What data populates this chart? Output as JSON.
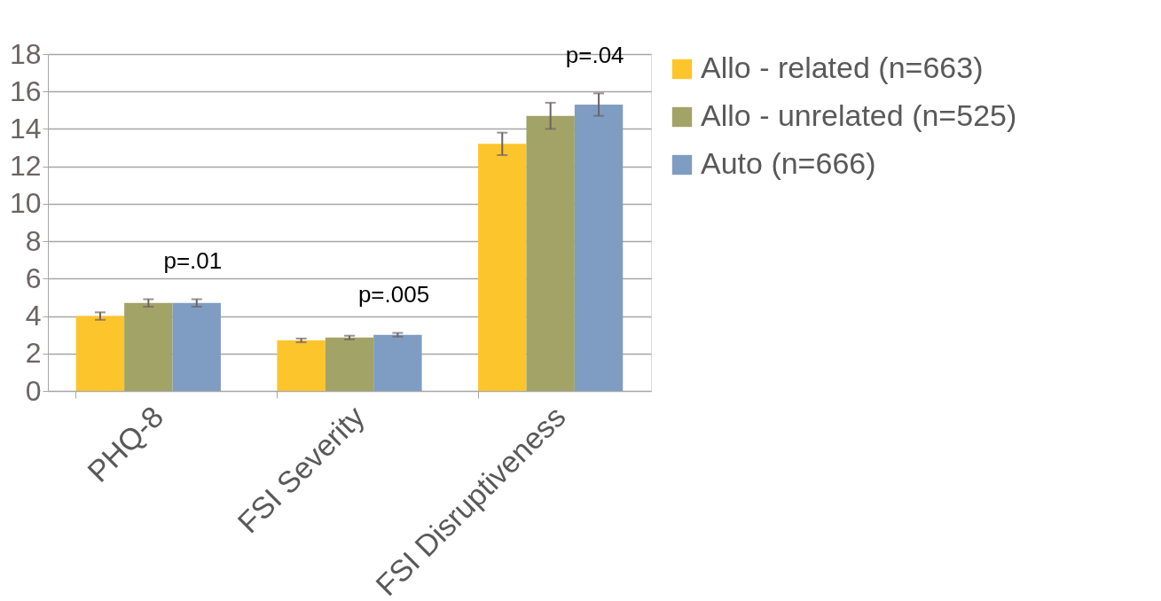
{
  "chart_data": {
    "type": "bar",
    "categories": [
      "PHQ-8",
      "FSI Severity",
      "FSI Disruptiveness"
    ],
    "series": [
      {
        "name": "Allo - related (n=663)",
        "color": "#fdc52c",
        "values": [
          4.0,
          2.7,
          13.2
        ],
        "errors": [
          0.2,
          0.1,
          0.6
        ]
      },
      {
        "name": "Allo - unrelated (n=525)",
        "color": "#a2a367",
        "values": [
          4.7,
          2.85,
          14.7
        ],
        "errors": [
          0.2,
          0.1,
          0.7
        ]
      },
      {
        "name": "Auto (n=666)",
        "color": "#7f9dc2",
        "values": [
          4.7,
          3.0,
          15.3
        ],
        "errors": [
          0.2,
          0.1,
          0.6
        ]
      }
    ],
    "ylim": [
      0,
      18
    ],
    "yticks": [
      0,
      2,
      4,
      6,
      8,
      10,
      12,
      14,
      16,
      18
    ],
    "grid": "y",
    "legend": "right",
    "annotations": [
      "p=.01",
      "p=.005",
      "p=.04"
    ]
  }
}
